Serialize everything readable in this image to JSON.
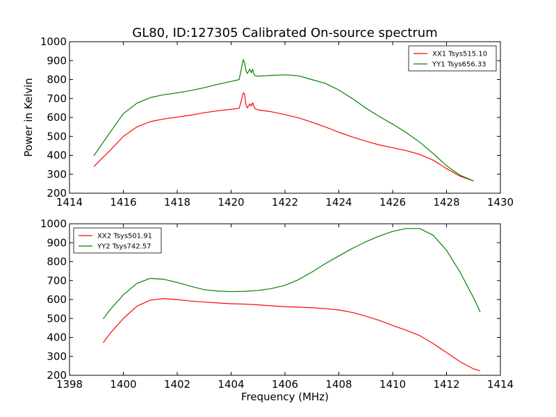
{
  "figure": {
    "title": "GL80, ID:127305 Calibrated On-source spectrum",
    "xlabel": "Frequency (MHz)",
    "ylabel": "Power in Kelvin"
  },
  "chart_data": [
    {
      "type": "line",
      "panel": "top",
      "title": "GL80, ID:127305 Calibrated On-source spectrum",
      "xlabel": "",
      "ylabel": "Power in Kelvin",
      "xlim": [
        1414,
        1430
      ],
      "ylim": [
        200,
        1000
      ],
      "xticks": [
        1414,
        1416,
        1418,
        1420,
        1422,
        1424,
        1426,
        1428,
        1430
      ],
      "yticks": [
        200,
        300,
        400,
        500,
        600,
        700,
        800,
        900,
        1000
      ],
      "grid": false,
      "legend_position": "top-right",
      "series": [
        {
          "name": "XX1 Tsys515.10",
          "color": "#ff0000",
          "x": [
            1414.9,
            1415.5,
            1416,
            1416.5,
            1417,
            1417.5,
            1418,
            1418.5,
            1419,
            1419.5,
            1420,
            1420.3,
            1420.4,
            1420.45,
            1420.5,
            1420.55,
            1420.6,
            1420.7,
            1420.75,
            1420.8,
            1420.85,
            1420.9,
            1421,
            1421.5,
            1422,
            1422.5,
            1423,
            1423.5,
            1424,
            1424.5,
            1425,
            1425.5,
            1426,
            1426.5,
            1427,
            1427.5,
            1428,
            1428.5,
            1429
          ],
          "y": [
            340,
            425,
            500,
            550,
            578,
            592,
            602,
            612,
            625,
            635,
            643,
            648,
            700,
            730,
            725,
            670,
            650,
            672,
            660,
            678,
            658,
            645,
            640,
            630,
            615,
            598,
            575,
            550,
            522,
            497,
            475,
            455,
            440,
            425,
            405,
            375,
            330,
            290,
            265
          ]
        },
        {
          "name": "YY1 Tsys656.33",
          "color": "#008000",
          "x": [
            1414.9,
            1415.5,
            1416,
            1416.5,
            1417,
            1417.5,
            1418,
            1418.5,
            1419,
            1419.5,
            1420,
            1420.3,
            1420.4,
            1420.45,
            1420.5,
            1420.55,
            1420.6,
            1420.7,
            1420.75,
            1420.8,
            1420.85,
            1420.9,
            1421,
            1421.5,
            1422,
            1422.5,
            1423,
            1423.5,
            1424,
            1424.5,
            1425,
            1425.5,
            1426,
            1426.5,
            1427,
            1427.5,
            1428,
            1428.5,
            1429
          ],
          "y": [
            397,
            520,
            620,
            675,
            705,
            720,
            730,
            742,
            757,
            775,
            790,
            800,
            870,
            905,
            890,
            848,
            832,
            855,
            835,
            855,
            828,
            820,
            818,
            822,
            825,
            820,
            800,
            780,
            745,
            700,
            650,
            605,
            565,
            520,
            470,
            410,
            345,
            295,
            265
          ]
        }
      ]
    },
    {
      "type": "line",
      "panel": "bottom",
      "title": "",
      "xlabel": "Frequency (MHz)",
      "ylabel": "",
      "xlim": [
        1398,
        1414
      ],
      "ylim": [
        200,
        1000
      ],
      "xticks": [
        1398,
        1400,
        1402,
        1404,
        1406,
        1408,
        1410,
        1412,
        1414
      ],
      "yticks": [
        200,
        300,
        400,
        500,
        600,
        700,
        800,
        900,
        1000
      ],
      "grid": false,
      "legend_position": "top-left",
      "series": [
        {
          "name": "XX2 Tsys501.91",
          "color": "#ff0000",
          "x": [
            1399.25,
            1399.5,
            1400,
            1400.5,
            1401,
            1401.5,
            1402,
            1402.5,
            1403,
            1403.5,
            1404,
            1404.5,
            1405,
            1405.5,
            1406,
            1406.5,
            1407,
            1407.5,
            1408,
            1408.5,
            1409,
            1409.5,
            1410,
            1410.5,
            1411,
            1411.5,
            1412,
            1412.5,
            1413,
            1413.25
          ],
          "y": [
            372,
            420,
            500,
            565,
            597,
            605,
            600,
            592,
            587,
            582,
            578,
            576,
            572,
            567,
            562,
            560,
            557,
            552,
            545,
            532,
            512,
            490,
            463,
            438,
            410,
            368,
            320,
            272,
            234,
            224
          ]
        },
        {
          "name": "YY2 Tsys742.57",
          "color": "#008000",
          "x": [
            1399.25,
            1399.5,
            1400,
            1400.5,
            1401,
            1401.5,
            1402,
            1402.5,
            1403,
            1403.5,
            1404,
            1404.5,
            1405,
            1405.5,
            1406,
            1406.5,
            1407,
            1407.5,
            1408,
            1408.5,
            1409,
            1409.5,
            1410,
            1410.5,
            1411,
            1411.5,
            1412,
            1412.5,
            1413,
            1413.25
          ],
          "y": [
            498,
            545,
            625,
            685,
            712,
            707,
            690,
            670,
            652,
            645,
            642,
            643,
            648,
            658,
            675,
            705,
            745,
            790,
            830,
            870,
            905,
            935,
            960,
            975,
            975,
            940,
            860,
            745,
            610,
            535
          ]
        }
      ]
    }
  ]
}
